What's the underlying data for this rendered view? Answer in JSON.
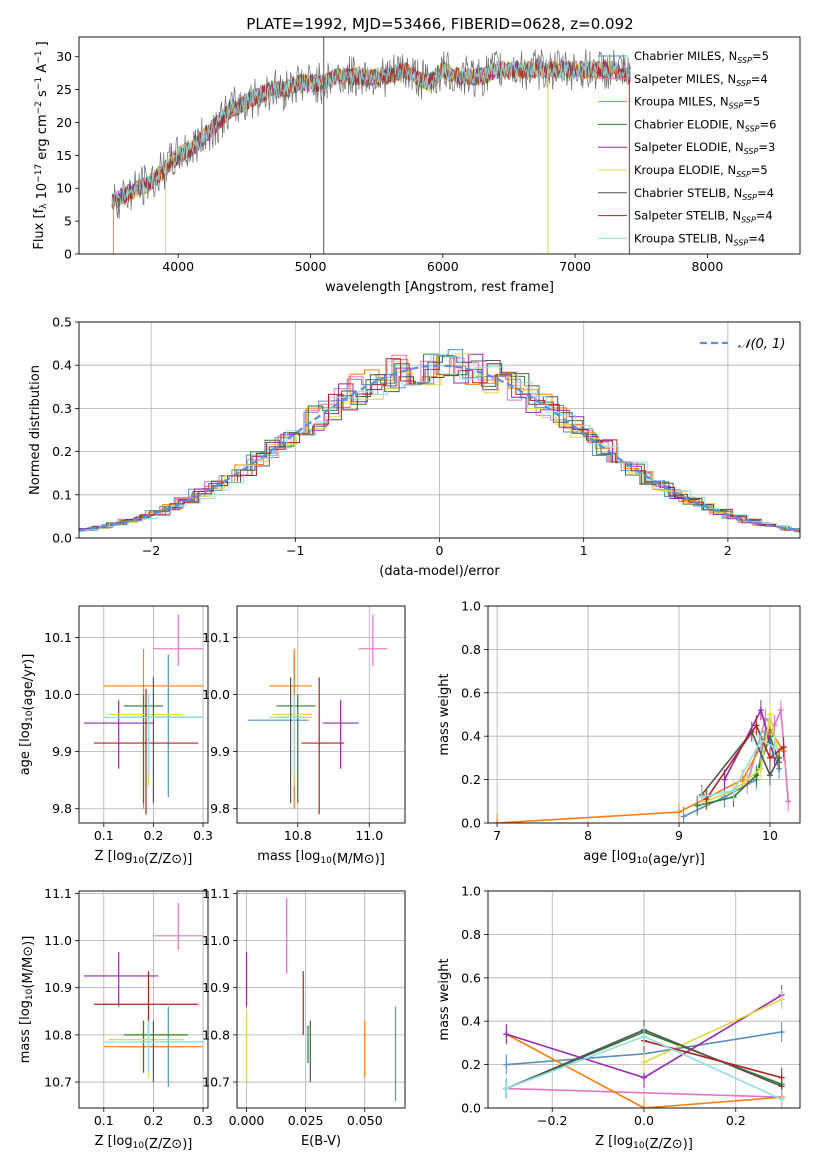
{
  "title": "PLATE=1992, MJD=53466, FIBERID=0628, z=0.092",
  "colors": {
    "Chabrier MILES": "#5b8ec2",
    "Salpeter MILES": "#e377c2",
    "Kroupa MILES": "#ff7f0e",
    "Chabrier ELODIE": "#2e7d32",
    "Salpeter ELODIE": "#9b27b0",
    "Kroupa ELODIE": "#dbdb45",
    "Chabrier STELIB": "#555555",
    "Salpeter STELIB": "#b22222",
    "Kroupa STELIB": "#8edfe9"
  },
  "legend_spectrum": [
    {
      "name": "Chabrier MILES",
      "nssp": 5
    },
    {
      "name": "Salpeter MILES",
      "nssp": 4
    },
    {
      "name": "Kroupa MILES",
      "nssp": 5
    },
    {
      "name": "Chabrier ELODIE",
      "nssp": 6
    },
    {
      "name": "Salpeter ELODIE",
      "nssp": 3
    },
    {
      "name": "Kroupa ELODIE",
      "nssp": 5
    },
    {
      "name": "Chabrier STELIB",
      "nssp": 4
    },
    {
      "name": "Salpeter STELIB",
      "nssp": 4
    },
    {
      "name": "Kroupa STELIB",
      "nssp": 4
    }
  ],
  "chart_data": [
    {
      "type": "line",
      "panel": "spectrum",
      "xlabel": "wavelength [Angstrom, rest frame]",
      "ylabel": "Flux [f_λ 10^-17 erg cm^-2 s^-1 A^-1]",
      "xlim": [
        3250,
        8700
      ],
      "ylim": [
        0,
        33
      ],
      "xticks": [
        4000,
        5000,
        6000,
        7000,
        8000
      ],
      "yticks": [
        0,
        5,
        10,
        15,
        20,
        25,
        30
      ],
      "legend_position": "right",
      "x": [
        3500,
        3600,
        3700,
        3800,
        3900,
        4000,
        4100,
        4200,
        4300,
        4400,
        4500,
        4600,
        4700,
        4800,
        4900,
        5000,
        5100,
        5200,
        5300,
        5400,
        5500,
        5600,
        5700,
        5800,
        5900,
        6000,
        6100,
        6200,
        6300,
        6400,
        6500,
        6600,
        6700,
        6800,
        6900,
        7000,
        7100,
        7200,
        7300,
        7400
      ],
      "y": [
        8,
        9,
        10,
        11,
        13,
        15,
        16,
        18,
        20,
        22,
        23,
        24,
        25,
        25,
        26,
        26,
        26,
        27,
        27,
        27,
        27,
        27,
        28,
        27,
        26,
        28,
        27,
        27,
        27,
        28,
        28,
        28,
        28,
        28,
        28,
        28,
        28,
        28,
        28,
        27
      ]
    },
    {
      "type": "line",
      "panel": "residuals",
      "xlabel": "(data-model)/error",
      "ylabel": "Normed distribution",
      "xlim": [
        -2.5,
        2.5
      ],
      "ylim": [
        0,
        0.5
      ],
      "xticks": [
        -2,
        -1,
        0,
        1,
        2
      ],
      "yticks": [
        0.0,
        0.1,
        0.2,
        0.3,
        0.4,
        0.5
      ],
      "legend": "𝒩(0, 1)",
      "legend_position": "top-right",
      "series_name": "𝒩(0, 1)"
    },
    {
      "type": "scatter",
      "panel": "age_vs_Z",
      "xlabel": "Z [log10(Z/Z⊙)]",
      "ylabel": "age [log10(age/yr)]",
      "xlim": [
        0.05,
        0.31
      ],
      "ylim": [
        9.775,
        10.155
      ],
      "xticks": [
        0.1,
        0.2,
        0.3
      ],
      "yticks": [
        9.8,
        9.9,
        10.0,
        10.1
      ],
      "points": [
        {
          "name": "Chabrier MILES",
          "x": 0.23,
          "xerr": [
            0.13,
            0.26
          ],
          "y": 9.96,
          "yerr": [
            9.82,
            10.07
          ]
        },
        {
          "name": "Salpeter MILES",
          "x": 0.25,
          "xerr": [
            0.2,
            0.3
          ],
          "y": 10.08,
          "yerr": [
            10.05,
            10.14
          ]
        },
        {
          "name": "Kroupa MILES",
          "x": 0.18,
          "xerr": [
            0.1,
            0.3
          ],
          "y": 10.015,
          "yerr": [
            9.8,
            10.08
          ]
        },
        {
          "name": "Chabrier ELODIE",
          "x": 0.18,
          "xerr": [
            0.14,
            0.22
          ],
          "y": 9.98,
          "yerr": [
            9.81,
            10.0
          ]
        },
        {
          "name": "Salpeter ELODIE",
          "x": 0.13,
          "xerr": [
            0.06,
            0.2
          ],
          "y": 9.95,
          "yerr": [
            9.87,
            9.99
          ]
        },
        {
          "name": "Kroupa ELODIE",
          "x": 0.19,
          "xerr": [
            0.11,
            0.26
          ],
          "y": 9.965,
          "yerr": [
            9.84,
            9.99
          ]
        },
        {
          "name": "Chabrier STELIB",
          "x": 0.2,
          "xerr": [
            0.16,
            0.3
          ],
          "y": 9.96,
          "yerr": [
            9.81,
            10.03
          ]
        },
        {
          "name": "Salpeter STELIB",
          "x": 0.185,
          "xerr": [
            0.08,
            0.29
          ],
          "y": 9.915,
          "yerr": [
            9.79,
            10.01
          ]
        },
        {
          "name": "Kroupa STELIB",
          "x": 0.19,
          "xerr": [
            0.1,
            0.3
          ],
          "y": 9.96,
          "yerr": [
            9.86,
            10.0
          ]
        }
      ]
    },
    {
      "type": "scatter",
      "panel": "age_vs_mass",
      "xlabel": "mass [log10(M/M⊙)]",
      "ylabel": "",
      "xlim": [
        10.63,
        11.1
      ],
      "ylim": [
        9.775,
        10.155
      ],
      "xticks": [
        10.8,
        11.0
      ],
      "yticks": [
        9.8,
        9.9,
        10.0,
        10.1
      ],
      "points": [
        {
          "name": "Chabrier MILES",
          "x": 10.79,
          "xerr": [
            10.66,
            10.83
          ],
          "y": 9.955,
          "yerr": [
            9.82,
            10.07
          ]
        },
        {
          "name": "Salpeter MILES",
          "x": 11.01,
          "xerr": [
            10.97,
            11.05
          ],
          "y": 10.08,
          "yerr": [
            10.05,
            10.14
          ]
        },
        {
          "name": "Kroupa MILES",
          "x": 10.79,
          "xerr": [
            10.72,
            10.84
          ],
          "y": 10.015,
          "yerr": [
            9.8,
            10.08
          ]
        },
        {
          "name": "Chabrier ELODIE",
          "x": 10.8,
          "xerr": [
            10.74,
            10.85
          ],
          "y": 9.98,
          "yerr": [
            9.81,
            10.0
          ]
        },
        {
          "name": "Salpeter ELODIE",
          "x": 10.92,
          "xerr": [
            10.87,
            10.97
          ],
          "y": 9.95,
          "yerr": [
            9.87,
            9.99
          ]
        },
        {
          "name": "Kroupa ELODIE",
          "x": 10.79,
          "xerr": [
            10.73,
            10.84
          ],
          "y": 9.965,
          "yerr": [
            9.84,
            9.99
          ]
        },
        {
          "name": "Chabrier STELIB",
          "x": 10.78,
          "xerr": [
            10.74,
            10.82
          ],
          "y": 9.96,
          "yerr": [
            9.81,
            10.03
          ]
        },
        {
          "name": "Salpeter STELIB",
          "x": 10.86,
          "xerr": [
            10.81,
            10.93
          ],
          "y": 9.915,
          "yerr": [
            9.79,
            10.03
          ]
        },
        {
          "name": "Kroupa STELIB",
          "x": 10.79,
          "xerr": [
            10.72,
            10.84
          ],
          "y": 9.96,
          "yerr": [
            9.86,
            10.0
          ]
        }
      ]
    },
    {
      "type": "line",
      "panel": "weight_vs_age",
      "xlabel": "age [log10(age/yr)]",
      "ylabel": "mass weight",
      "xlim": [
        6.9,
        10.33
      ],
      "ylim": [
        0,
        1.0
      ],
      "xticks": [
        7,
        8,
        9,
        10
      ],
      "yticks": [
        0.0,
        0.2,
        0.4,
        0.6,
        0.8,
        1.0
      ],
      "series": [
        {
          "name": "Chabrier MILES",
          "x": [
            9.05,
            9.5,
            9.85,
            9.95,
            10.1
          ],
          "y": [
            0.03,
            0.12,
            0.2,
            0.42,
            0.25
          ]
        },
        {
          "name": "Salpeter MILES",
          "x": [
            9.75,
            9.95,
            10.05,
            10.12,
            10.2
          ],
          "y": [
            0.18,
            0.48,
            0.45,
            0.52,
            0.1
          ]
        },
        {
          "name": "Kroupa MILES",
          "x": [
            7.0,
            9.0,
            9.7,
            10.0,
            10.15
          ],
          "y": [
            0.0,
            0.05,
            0.2,
            0.43,
            0.33
          ]
        },
        {
          "name": "Chabrier ELODIE",
          "x": [
            9.2,
            9.6,
            9.85,
            10.0,
            10.1
          ],
          "y": [
            0.08,
            0.12,
            0.22,
            0.4,
            0.28
          ]
        },
        {
          "name": "Salpeter ELODIE",
          "x": [
            9.5,
            9.9,
            10.05
          ],
          "y": [
            0.2,
            0.52,
            0.3
          ]
        },
        {
          "name": "Kroupa ELODIE",
          "x": [
            9.3,
            9.6,
            9.9,
            10.0,
            10.1
          ],
          "y": [
            0.1,
            0.15,
            0.25,
            0.5,
            0.3
          ]
        },
        {
          "name": "Chabrier STELIB",
          "x": [
            9.25,
            9.8,
            10.0,
            10.1
          ],
          "y": [
            0.13,
            0.42,
            0.22,
            0.3
          ]
        },
        {
          "name": "Salpeter STELIB",
          "x": [
            9.3,
            9.85,
            10.0,
            10.15
          ],
          "y": [
            0.11,
            0.45,
            0.3,
            0.35
          ]
        },
        {
          "name": "Kroupa STELIB",
          "x": [
            9.25,
            9.6,
            9.9,
            10.05
          ],
          "y": [
            0.12,
            0.15,
            0.38,
            0.35
          ]
        }
      ]
    },
    {
      "type": "scatter",
      "panel": "mass_vs_Z",
      "xlabel": "Z [log10(Z/Z⊙)]",
      "ylabel": "mass [log10(M/M⊙)]",
      "xlim": [
        0.05,
        0.31
      ],
      "ylim": [
        10.645,
        11.105
      ],
      "xticks": [
        0.1,
        0.2,
        0.3
      ],
      "yticks": [
        10.7,
        10.8,
        10.9,
        11.0,
        11.1
      ],
      "points": [
        {
          "name": "Chabrier MILES",
          "x": 0.23,
          "xerr": [
            0.13,
            0.26
          ],
          "y": 10.775,
          "yerr": [
            10.69,
            10.86
          ]
        },
        {
          "name": "Salpeter MILES",
          "x": 0.25,
          "xerr": [
            0.2,
            0.3
          ],
          "y": 11.01,
          "yerr": [
            10.98,
            11.08
          ]
        },
        {
          "name": "Kroupa MILES",
          "x": 0.18,
          "xerr": [
            0.1,
            0.3
          ],
          "y": 10.775,
          "yerr": [
            10.72,
            10.83
          ]
        },
        {
          "name": "Chabrier ELODIE",
          "x": 0.18,
          "xerr": [
            0.14,
            0.27
          ],
          "y": 10.8,
          "yerr": [
            10.72,
            10.83
          ]
        },
        {
          "name": "Salpeter ELODIE",
          "x": 0.13,
          "xerr": [
            0.06,
            0.21
          ],
          "y": 10.925,
          "yerr": [
            10.86,
            10.975
          ]
        },
        {
          "name": "Kroupa ELODIE",
          "x": 0.19,
          "xerr": [
            0.11,
            0.26
          ],
          "y": 10.79,
          "yerr": [
            10.71,
            10.84
          ]
        },
        {
          "name": "Chabrier STELIB",
          "x": 0.2,
          "xerr": [
            0.16,
            0.3
          ],
          "y": 10.785,
          "yerr": [
            10.7,
            10.83
          ]
        },
        {
          "name": "Salpeter STELIB",
          "x": 0.19,
          "xerr": [
            0.08,
            0.29
          ],
          "y": 10.865,
          "yerr": [
            10.8,
            10.935
          ]
        },
        {
          "name": "Kroupa STELIB",
          "x": 0.19,
          "xerr": [
            0.1,
            0.3
          ],
          "y": 10.785,
          "yerr": [
            10.72,
            10.83
          ]
        }
      ]
    },
    {
      "type": "scatter",
      "panel": "mass_vs_EBV",
      "xlabel": "E(B-V)",
      "ylabel": "",
      "xlim": [
        -0.004,
        0.067
      ],
      "ylim": [
        10.645,
        11.105
      ],
      "xticks": [
        0.0,
        0.025,
        0.05
      ],
      "xticklabels": [
        "0.000",
        "0.025",
        "0.050"
      ],
      "yticks": [
        10.7,
        10.8,
        10.9,
        11.0,
        11.1
      ],
      "points": [
        {
          "name": "Chabrier MILES",
          "x": 0.063,
          "y": 10.77,
          "yerr": [
            10.66,
            10.86
          ]
        },
        {
          "name": "Salpeter MILES",
          "x": 0.017,
          "y": 11.01,
          "yerr": [
            10.93,
            11.09
          ]
        },
        {
          "name": "Kroupa MILES",
          "x": 0.05,
          "y": 10.77,
          "yerr": [
            10.71,
            10.83
          ]
        },
        {
          "name": "Chabrier ELODIE",
          "x": 0.026,
          "y": 10.79,
          "yerr": [
            10.74,
            10.82
          ]
        },
        {
          "name": "Salpeter ELODIE",
          "x": 0.0,
          "y": 10.92,
          "yerr": [
            10.86,
            10.975
          ]
        },
        {
          "name": "Kroupa ELODIE",
          "x": 0.0,
          "y": 10.78,
          "yerr": [
            10.7,
            10.85
          ]
        },
        {
          "name": "Chabrier STELIB",
          "x": 0.027,
          "y": 10.78,
          "yerr": [
            10.7,
            10.83
          ]
        },
        {
          "name": "Salpeter STELIB",
          "x": 0.024,
          "y": 10.86,
          "yerr": [
            10.8,
            10.935
          ]
        },
        {
          "name": "Kroupa STELIB",
          "x": 0.025,
          "y": 10.77,
          "yerr": [
            10.7,
            10.82
          ]
        }
      ]
    },
    {
      "type": "line",
      "panel": "weight_vs_Z",
      "xlabel": "Z [log10(Z/Z⊙)]",
      "ylabel": "mass weight",
      "xlim": [
        -0.34,
        0.34
      ],
      "ylim": [
        0,
        1.0
      ],
      "xticks": [
        -0.2,
        0.0,
        0.2
      ],
      "yticks": [
        0.0,
        0.2,
        0.4,
        0.6,
        0.8,
        1.0
      ],
      "series": [
        {
          "name": "Chabrier MILES",
          "x": [
            -0.3,
            0.0,
            0.3
          ],
          "y": [
            0.2,
            0.25,
            0.35
          ]
        },
        {
          "name": "Salpeter MILES",
          "x": [
            -0.3,
            0.3
          ],
          "y": [
            0.09,
            0.05
          ]
        },
        {
          "name": "Kroupa MILES",
          "x": [
            -0.3,
            0.0,
            0.3
          ],
          "y": [
            0.34,
            0.0,
            0.05
          ]
        },
        {
          "name": "Chabrier ELODIE",
          "x": [
            -0.3,
            0.0,
            0.3
          ],
          "y": [
            0.09,
            0.35,
            0.11
          ]
        },
        {
          "name": "Salpeter ELODIE",
          "x": [
            -0.3,
            0.0,
            0.3
          ],
          "y": [
            0.34,
            0.14,
            0.52
          ]
        },
        {
          "name": "Kroupa ELODIE",
          "x": [
            0.0,
            0.3
          ],
          "y": [
            0.21,
            0.5
          ]
        },
        {
          "name": "Chabrier STELIB",
          "x": [
            -0.3,
            0.0,
            0.3
          ],
          "y": [
            0.09,
            0.36,
            0.1
          ]
        },
        {
          "name": "Salpeter STELIB",
          "x": [
            0.0,
            0.3
          ],
          "y": [
            0.31,
            0.14
          ]
        },
        {
          "name": "Kroupa STELIB",
          "x": [
            -0.3,
            0.0,
            0.3
          ],
          "y": [
            0.09,
            0.33,
            0.04
          ]
        }
      ]
    }
  ]
}
